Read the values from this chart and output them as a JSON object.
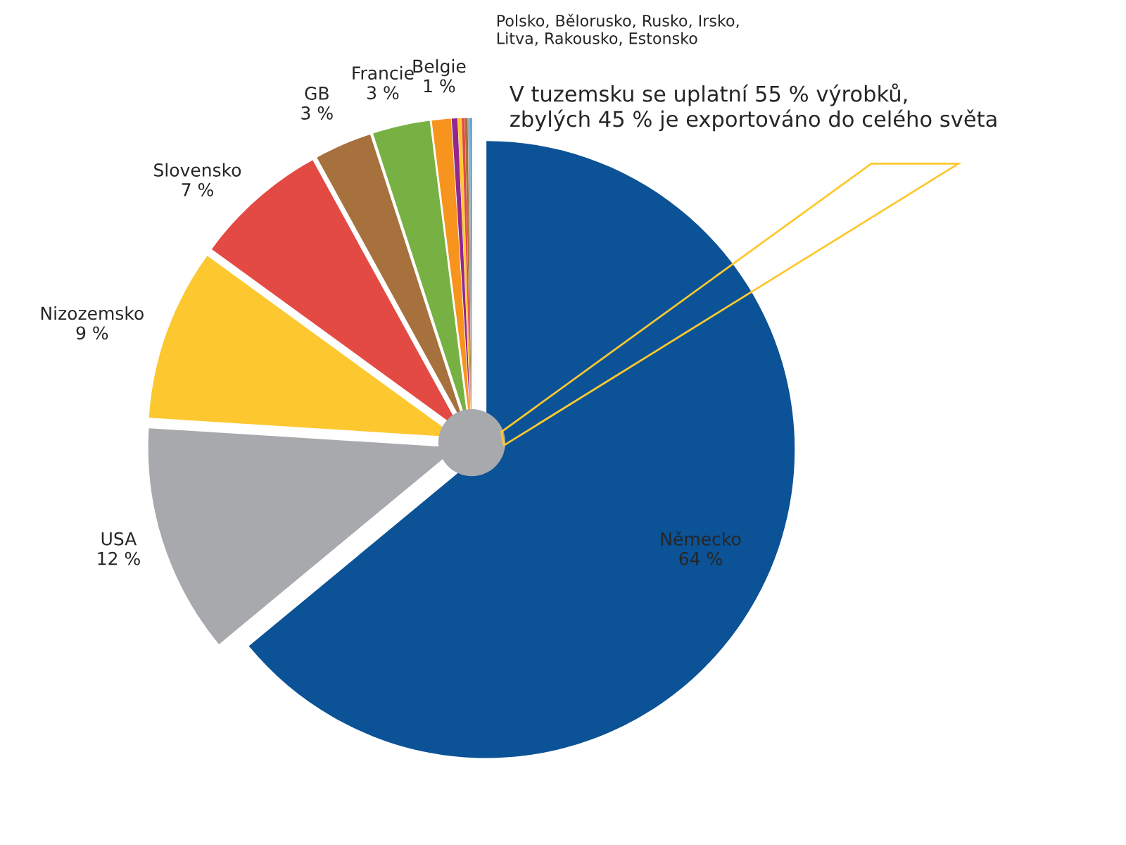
{
  "chart_data": {
    "type": "pie",
    "categories": [
      "Německo",
      "USA",
      "Nizozemsko",
      "Slovensko",
      "GB",
      "Francie",
      "Belgie",
      null,
      null,
      null,
      null,
      null,
      null
    ],
    "values": [
      64,
      12,
      9,
      7,
      3,
      3,
      1,
      0.3,
      0.2,
      0.15,
      0.15,
      0.12,
      0.08
    ],
    "value_labels": [
      "64 %",
      "12 %",
      "9 %",
      "7 %",
      "3 %",
      "3 %",
      "1 %",
      null,
      null,
      null,
      null,
      null,
      null
    ],
    "colors": [
      "#0b5296",
      "#a7a9ac",
      "#fdc82f",
      "#e34a43",
      "#a6713c",
      "#77b143",
      "#f7941d",
      "#92278f",
      "#fdc82f",
      "#e34a43",
      "#a6713c",
      "#a7a9ac",
      "#2e8bd6"
    ],
    "annotations": [
      "Polsko, Bělorusko, Rusko, Irsko,\nLitva, Rakousko, Estonsko",
      "V tuzemsku se uplatní 55 % výrobků,\nzbylých 45 % je exportováno do celého světa"
    ],
    "legend": false
  }
}
